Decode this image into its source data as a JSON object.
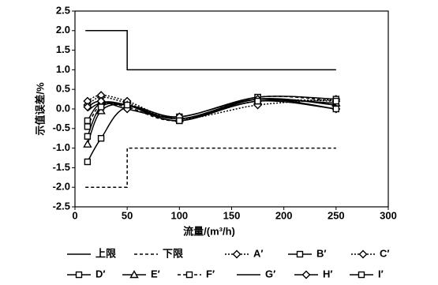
{
  "chart_data": {
    "type": "line",
    "xlabel": "流量/(m³/h)",
    "ylabel": "示值误差/%",
    "xlim": [
      0,
      300
    ],
    "xticks": [
      0,
      50,
      100,
      150,
      200,
      250,
      300
    ],
    "ylim": [
      -2.5,
      2.5
    ],
    "yticks": [
      2.5,
      {
        "value": 2,
        "label": "2.0"
      },
      1.5,
      {
        "value": 1,
        "label": "1.0"
      },
      0.5,
      {
        "value": 0,
        "label": "0.0"
      },
      -0.5,
      {
        "value": -1,
        "label": "-1.0"
      },
      -1.5,
      {
        "value": -2,
        "label": "-2.0"
      },
      -2.5
    ],
    "series": [
      {
        "name": "上限",
        "color": "#000000",
        "dash": "solid",
        "marker": "none",
        "smooth": false,
        "x": [
          10,
          50,
          50,
          250
        ],
        "values": [
          2,
          2,
          1,
          1
        ]
      },
      {
        "name": "下限",
        "color": "#000000",
        "dash": "dashed",
        "marker": "none",
        "smooth": false,
        "x": [
          10,
          50,
          50,
          250
        ],
        "values": [
          -2,
          -2,
          -1,
          -1
        ]
      },
      {
        "name": "A′",
        "color": "#000000",
        "dash": "dotted",
        "marker": "diamond",
        "smooth": true,
        "x": [
          12,
          25,
          50,
          100,
          175,
          250
        ],
        "values": [
          0.1,
          0.3,
          0.15,
          -0.25,
          0.2,
          0.2
        ]
      },
      {
        "name": "B′",
        "color": "#000000",
        "dash": "solid",
        "marker": "square",
        "smooth": true,
        "x": [
          12,
          25,
          50,
          100,
          175,
          250
        ],
        "values": [
          -0.3,
          0.15,
          0.1,
          -0.3,
          0.25,
          0.1
        ]
      },
      {
        "name": "C′",
        "color": "#000000",
        "dash": "dotted",
        "marker": "diamond",
        "smooth": true,
        "x": [
          12,
          25,
          50,
          100,
          175,
          250
        ],
        "values": [
          0.2,
          0.35,
          0.2,
          -0.25,
          0.1,
          0.25
        ]
      },
      {
        "name": "D′",
        "color": "#000000",
        "dash": "solid",
        "marker": "square",
        "smooth": true,
        "x": [
          12,
          25,
          50,
          100,
          175,
          250
        ],
        "values": [
          -1.35,
          -0.75,
          0.05,
          -0.2,
          0.3,
          0.25
        ]
      },
      {
        "name": "E′",
        "color": "#000000",
        "dash": "solid",
        "marker": "triangle",
        "smooth": true,
        "x": [
          12,
          25,
          50,
          100,
          175,
          250
        ],
        "values": [
          -0.9,
          -0.05,
          0.1,
          -0.25,
          0.2,
          0.15
        ]
      },
      {
        "name": "F′",
        "color": "#000000",
        "dash": "dashed",
        "marker": "square",
        "smooth": true,
        "x": [
          12,
          25,
          50,
          100,
          175,
          250
        ],
        "values": [
          -0.45,
          0.1,
          0.05,
          -0.3,
          0.3,
          0.2
        ]
      },
      {
        "name": "G′",
        "color": "#000000",
        "dash": "solid",
        "marker": "none",
        "smooth": true,
        "x": [
          12,
          25,
          50,
          100,
          175,
          250
        ],
        "values": [
          -0.05,
          0.15,
          0.1,
          -0.25,
          0.25,
          0.1
        ]
      },
      {
        "name": "H′",
        "color": "#000000",
        "dash": "solid",
        "marker": "diamond",
        "smooth": true,
        "x": [
          12,
          25,
          50,
          100,
          175,
          250
        ],
        "values": [
          0.05,
          0.2,
          0,
          -0.2,
          0.25,
          0
        ]
      },
      {
        "name": "I′",
        "color": "#000000",
        "dash": "solid",
        "marker": "square",
        "smooth": true,
        "x": [
          12,
          25,
          50,
          100,
          175,
          250
        ],
        "values": [
          -0.7,
          0.05,
          0.1,
          -0.3,
          0.2,
          0
        ]
      }
    ]
  }
}
